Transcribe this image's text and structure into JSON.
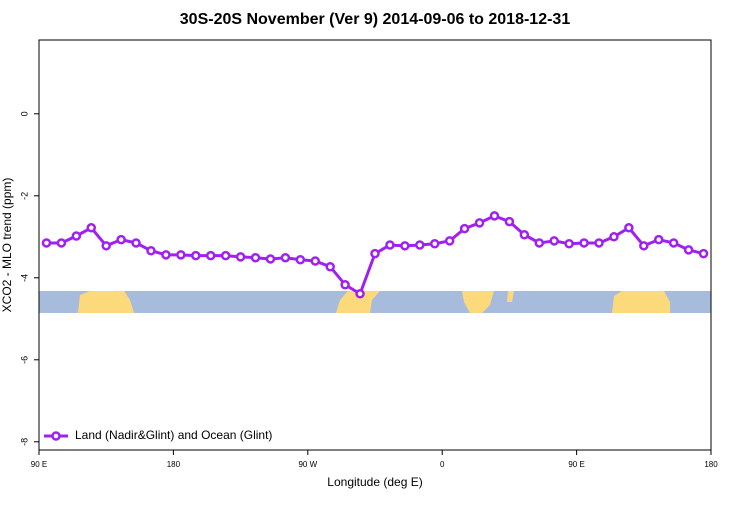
{
  "chart_data": {
    "type": "line",
    "title": "30S-20S November (Ver 9)   2014-09-06 to 2018-12-31",
    "x_label": "Longitude (deg E)",
    "y_label": "XCO2 - MLO trend (ppm)",
    "x": [
      95,
      105,
      115,
      125,
      135,
      145,
      155,
      165,
      175,
      185,
      195,
      205,
      215,
      225,
      235,
      245,
      255,
      265,
      275,
      285,
      295,
      305,
      315,
      325,
      335,
      345,
      355,
      365,
      375,
      385,
      395,
      405,
      415,
      425,
      435,
      445,
      455,
      465,
      475,
      485,
      495,
      505,
      515,
      525,
      535
    ],
    "series": [
      {
        "name": "Land (Nadir&Glint) and Ocean (Glint)",
        "color": "#a020f0",
        "values": [
          -3.15,
          -3.15,
          -2.98,
          -2.78,
          -3.22,
          -3.07,
          -3.15,
          -3.34,
          -3.44,
          -3.44,
          -3.46,
          -3.46,
          -3.46,
          -3.49,
          -3.51,
          -3.54,
          -3.51,
          -3.56,
          -3.59,
          -3.73,
          -4.17,
          -4.39,
          -3.41,
          -3.2,
          -3.22,
          -3.2,
          -3.17,
          -3.1,
          -2.8,
          -2.66,
          -2.49,
          -2.63,
          -2.95,
          -3.15,
          -3.1,
          -3.17,
          -3.15,
          -3.15,
          -3.0,
          -2.78,
          -3.22,
          -3.07,
          -3.15,
          -3.32,
          -3.41
        ]
      }
    ],
    "xlim": [
      90,
      540
    ],
    "xticks": [
      {
        "value": 90,
        "label": "90 E"
      },
      180,
      {
        "value": 270,
        "label": "90 W"
      },
      {
        "value": 360,
        "label": "0"
      },
      {
        "value": 450,
        "label": "90 E"
      },
      {
        "value": 540,
        "label": "180"
      }
    ],
    "ylim": [
      -8.2,
      1.8
    ],
    "yticks": [
      0,
      -2,
      -4,
      -6,
      -8
    ],
    "legend": "bottom-left"
  }
}
